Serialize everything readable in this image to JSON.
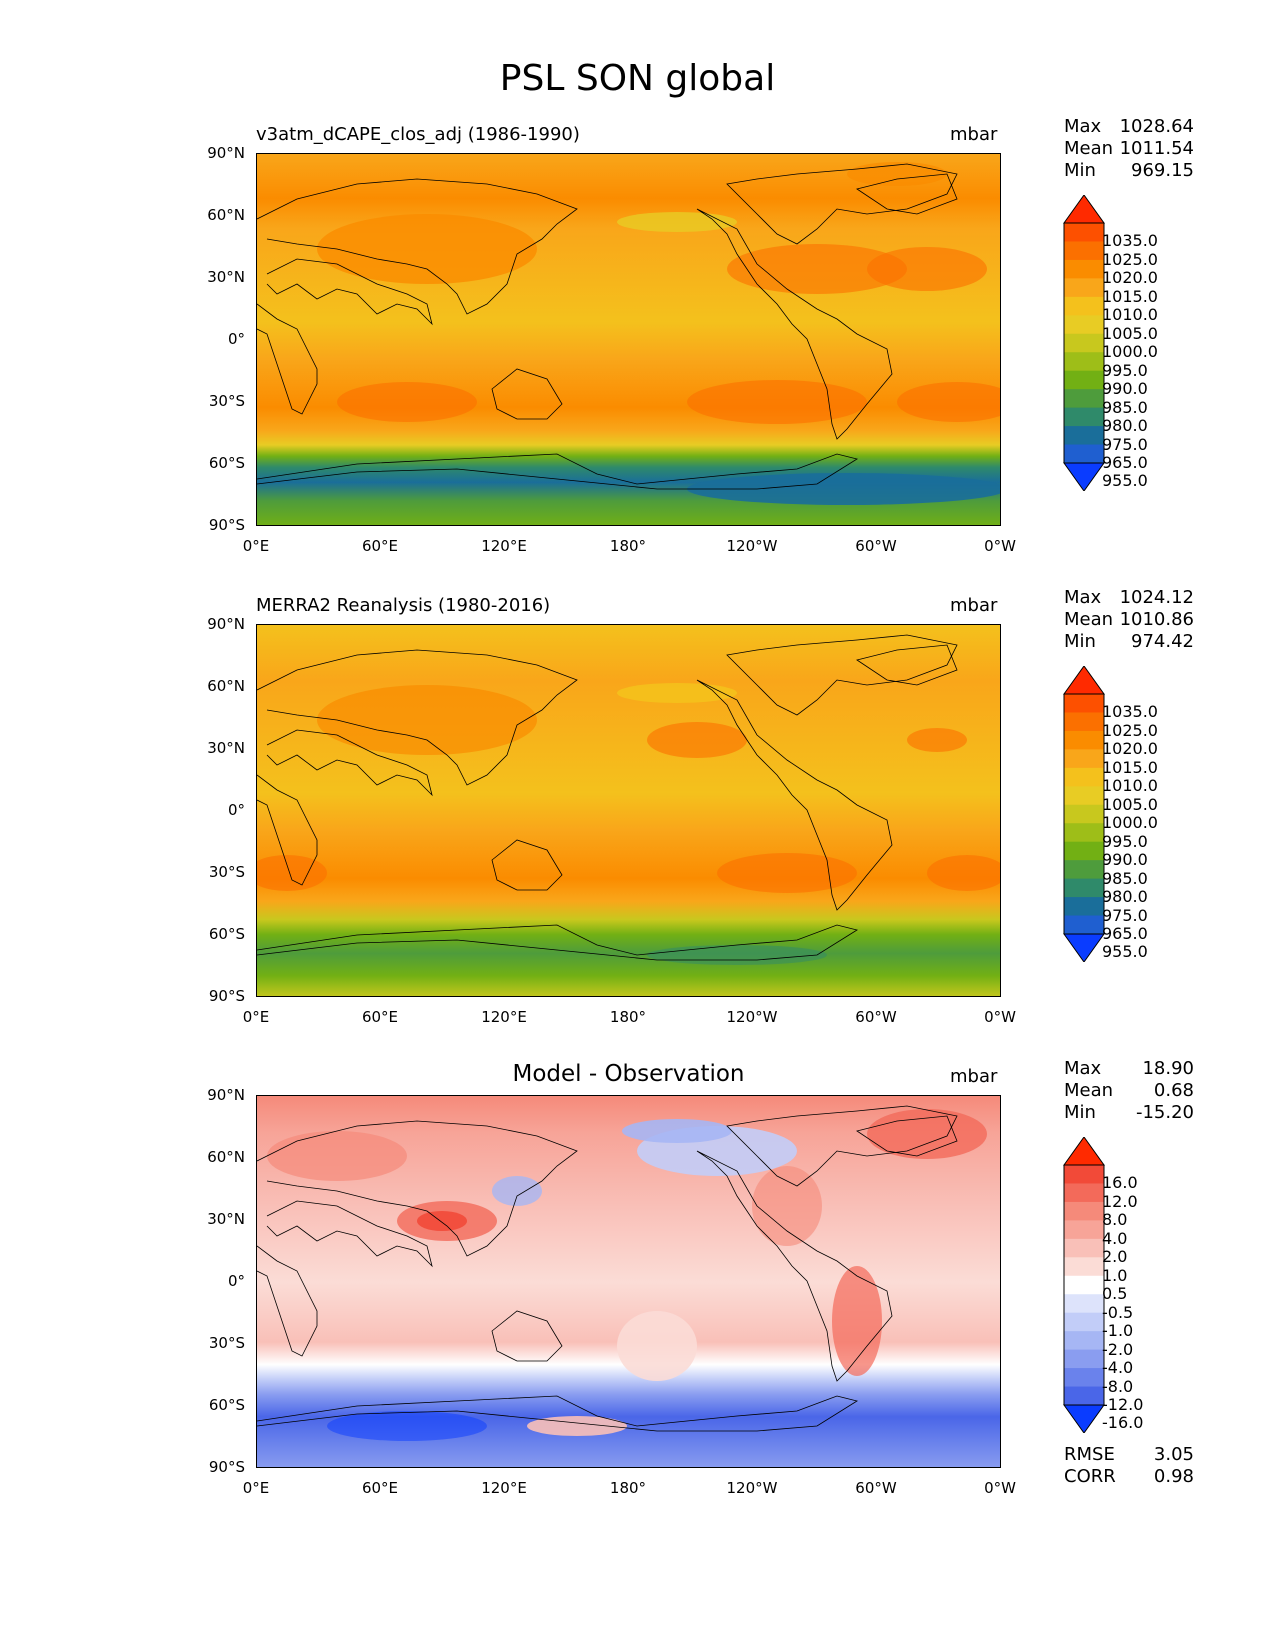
{
  "figure": {
    "title": "PSL SON global",
    "lat_ticks": [
      "90°N",
      "60°N",
      "30°N",
      "0°",
      "30°S",
      "60°S",
      "90°S"
    ],
    "lon_ticks": [
      "0°E",
      "60°E",
      "120°E",
      "180°",
      "120°W",
      "60°W",
      "0°W"
    ]
  },
  "panels": [
    {
      "title": "v3atm_dCAPE_clos_adj (1986-1990)",
      "units": "mbar",
      "stats": [
        {
          "label": "Max",
          "value": "1028.64"
        },
        {
          "label": "Mean",
          "value": "1011.54"
        },
        {
          "label": "Min",
          "value": "969.15"
        }
      ],
      "colorbar": {
        "levels": [
          "1035.0",
          "1025.0",
          "1020.0",
          "1015.0",
          "1010.0",
          "1005.0",
          "1000.0",
          "995.0",
          "990.0",
          "985.0",
          "980.0",
          "975.0",
          "965.0",
          "955.0"
        ],
        "colors": [
          "#ff2a00",
          "#fd5000",
          "#fb7000",
          "#fa8c00",
          "#f9a61a",
          "#f4c11c",
          "#e8cc24",
          "#c8c81e",
          "#9ebe18",
          "#72b014",
          "#4e9c3c",
          "#2f8a6a",
          "#1a6e9a",
          "#1f5fd0",
          "#0a3cff"
        ]
      }
    },
    {
      "title": "MERRA2 Reanalysis (1980-2016)",
      "units": "mbar",
      "stats": [
        {
          "label": "Max",
          "value": "1024.12"
        },
        {
          "label": "Mean",
          "value": "1010.86"
        },
        {
          "label": "Min",
          "value": "974.42"
        }
      ],
      "colorbar": {
        "levels": [
          "1035.0",
          "1025.0",
          "1020.0",
          "1015.0",
          "1010.0",
          "1005.0",
          "1000.0",
          "995.0",
          "990.0",
          "985.0",
          "980.0",
          "975.0",
          "965.0",
          "955.0"
        ],
        "colors": [
          "#ff2a00",
          "#fd5000",
          "#fb7000",
          "#fa8c00",
          "#f9a61a",
          "#f4c11c",
          "#e8cc24",
          "#c8c81e",
          "#9ebe18",
          "#72b014",
          "#4e9c3c",
          "#2f8a6a",
          "#1a6e9a",
          "#1f5fd0",
          "#0a3cff"
        ]
      }
    },
    {
      "title": "Model - Observation",
      "units": "mbar",
      "stats": [
        {
          "label": "Max",
          "value": "18.90"
        },
        {
          "label": "Mean",
          "value": "0.68"
        },
        {
          "label": "Min",
          "value": "-15.20"
        }
      ],
      "colorbar": {
        "levels": [
          "16.0",
          "12.0",
          "8.0",
          "4.0",
          "2.0",
          "1.0",
          "0.5",
          "-0.5",
          "-1.0",
          "-2.0",
          "-4.0",
          "-8.0",
          "-12.0",
          "-16.0"
        ],
        "colors": [
          "#ff2a00",
          "#f24a38",
          "#f36a5a",
          "#f58a7a",
          "#f7a498",
          "#f9c0b8",
          "#fbdcd6",
          "#ffffff",
          "#dde3fb",
          "#c2cdf8",
          "#a6b6f4",
          "#8a9df0",
          "#6a82ec",
          "#4a66e8",
          "#0a3cff"
        ]
      },
      "metrics": [
        {
          "label": "RMSE",
          "value": "3.05"
        },
        {
          "label": "CORR",
          "value": "0.98"
        }
      ]
    }
  ]
}
